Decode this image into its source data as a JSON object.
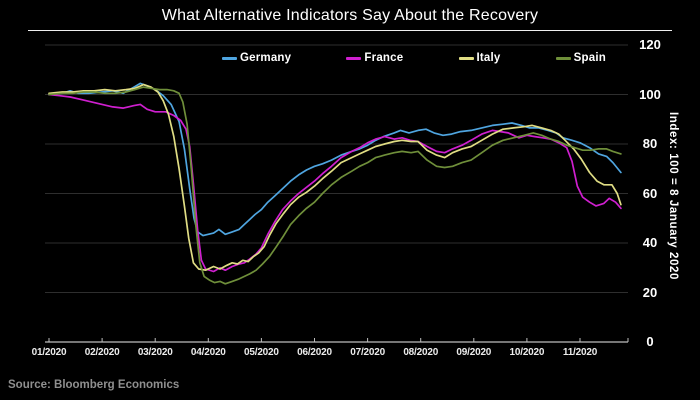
{
  "header": {
    "title": "What Alternative Indicators Say About the Recovery"
  },
  "footer": {
    "source": "Source: Bloomberg Economics"
  },
  "colors": {
    "background": "#000000",
    "title": "#ffffff",
    "grid": "#2e2e2e",
    "axis": "#bdbdbd",
    "germany": "#4fa5e0",
    "france": "#cf1fcf",
    "italy": "#e0dd84",
    "spain": "#6f8f3a"
  },
  "chart_data": {
    "type": "line",
    "title": "What Alternative Indicators Say About the Recovery",
    "y_axis_title": "Index: 100 = 8 January 2020",
    "x_unit": "months_from_01_2020",
    "x_tick_labels": [
      "01/2020",
      "02/2020",
      "03/2020",
      "04/2020",
      "05/2020",
      "06/2020",
      "07/2020",
      "08/2020",
      "09/2020",
      "10/2020",
      "11/2020"
    ],
    "y_ticks": [
      0,
      20,
      40,
      60,
      80,
      100,
      120
    ],
    "ylim": [
      0,
      120
    ],
    "xlim": [
      0,
      10.9
    ],
    "grid": "horizontal",
    "legend_position": "top",
    "series": [
      {
        "name": "Germany",
        "color": "#4fa5e0",
        "points": [
          [
            0,
            100
          ],
          [
            0.25,
            100.5
          ],
          [
            0.4,
            101.5
          ],
          [
            0.55,
            100.5
          ],
          [
            0.75,
            100.5
          ],
          [
            1.0,
            101
          ],
          [
            1.2,
            101.5
          ],
          [
            1.4,
            100.5
          ],
          [
            1.6,
            103
          ],
          [
            1.72,
            104.5
          ],
          [
            1.85,
            103.5
          ],
          [
            2.0,
            102
          ],
          [
            2.15,
            99.5
          ],
          [
            2.3,
            96
          ],
          [
            2.45,
            89
          ],
          [
            2.55,
            78
          ],
          [
            2.65,
            62
          ],
          [
            2.73,
            50
          ],
          [
            2.8,
            44.5
          ],
          [
            2.9,
            43
          ],
          [
            3.0,
            43.5
          ],
          [
            3.1,
            44
          ],
          [
            3.2,
            45.5
          ],
          [
            3.32,
            43.5
          ],
          [
            3.45,
            44.5
          ],
          [
            3.58,
            45.5
          ],
          [
            3.68,
            47.5
          ],
          [
            3.78,
            49.5
          ],
          [
            3.88,
            51.5
          ],
          [
            4.0,
            53.5
          ],
          [
            4.12,
            56.5
          ],
          [
            4.25,
            59
          ],
          [
            4.4,
            62
          ],
          [
            4.55,
            65
          ],
          [
            4.7,
            67.5
          ],
          [
            4.85,
            69.5
          ],
          [
            5.0,
            71
          ],
          [
            5.15,
            72
          ],
          [
            5.32,
            73.5
          ],
          [
            5.5,
            75.5
          ],
          [
            5.7,
            77
          ],
          [
            5.85,
            78
          ],
          [
            6.0,
            79.5
          ],
          [
            6.15,
            81.5
          ],
          [
            6.3,
            83
          ],
          [
            6.5,
            84.5
          ],
          [
            6.62,
            85.5
          ],
          [
            6.78,
            84.5
          ],
          [
            6.95,
            85.5
          ],
          [
            7.1,
            86
          ],
          [
            7.25,
            84.5
          ],
          [
            7.42,
            83.5
          ],
          [
            7.58,
            84
          ],
          [
            7.75,
            85
          ],
          [
            7.95,
            85.5
          ],
          [
            8.15,
            86.5
          ],
          [
            8.35,
            87.5
          ],
          [
            8.55,
            88
          ],
          [
            8.72,
            88.5
          ],
          [
            8.9,
            87.5
          ],
          [
            9.05,
            86.5
          ],
          [
            9.22,
            86.5
          ],
          [
            9.4,
            85.5
          ],
          [
            9.55,
            84.5
          ],
          [
            9.68,
            82.5
          ],
          [
            9.85,
            81.5
          ],
          [
            10.0,
            80.5
          ],
          [
            10.18,
            78.5
          ],
          [
            10.35,
            76
          ],
          [
            10.5,
            75
          ],
          [
            10.62,
            72.5
          ],
          [
            10.77,
            68.5
          ]
        ]
      },
      {
        "name": "France",
        "color": "#cf1fcf",
        "points": [
          [
            0,
            100
          ],
          [
            0.2,
            99.5
          ],
          [
            0.4,
            99
          ],
          [
            0.6,
            98
          ],
          [
            0.8,
            97
          ],
          [
            1.0,
            96
          ],
          [
            1.2,
            95
          ],
          [
            1.4,
            94.5
          ],
          [
            1.6,
            95.5
          ],
          [
            1.72,
            96
          ],
          [
            1.85,
            94
          ],
          [
            2.0,
            93
          ],
          [
            2.2,
            93
          ],
          [
            2.35,
            91.5
          ],
          [
            2.48,
            89.5
          ],
          [
            2.58,
            86
          ],
          [
            2.65,
            79
          ],
          [
            2.72,
            64
          ],
          [
            2.8,
            45
          ],
          [
            2.87,
            33
          ],
          [
            2.95,
            29.5
          ],
          [
            3.1,
            28.5
          ],
          [
            3.22,
            30
          ],
          [
            3.32,
            29
          ],
          [
            3.45,
            30.5
          ],
          [
            3.58,
            31.5
          ],
          [
            3.68,
            32
          ],
          [
            3.78,
            33.5
          ],
          [
            3.9,
            35.5
          ],
          [
            4.0,
            38
          ],
          [
            4.12,
            43.5
          ],
          [
            4.25,
            48.5
          ],
          [
            4.4,
            53.5
          ],
          [
            4.55,
            57
          ],
          [
            4.7,
            60
          ],
          [
            4.85,
            62.5
          ],
          [
            5.0,
            65
          ],
          [
            5.15,
            68
          ],
          [
            5.32,
            71
          ],
          [
            5.5,
            74.5
          ],
          [
            5.7,
            77
          ],
          [
            5.85,
            78.5
          ],
          [
            6.0,
            80.5
          ],
          [
            6.15,
            82
          ],
          [
            6.32,
            83
          ],
          [
            6.5,
            82
          ],
          [
            6.65,
            82.5
          ],
          [
            6.8,
            81.5
          ],
          [
            6.95,
            81
          ],
          [
            7.12,
            79
          ],
          [
            7.3,
            77
          ],
          [
            7.45,
            76.5
          ],
          [
            7.6,
            78
          ],
          [
            7.78,
            79.5
          ],
          [
            7.95,
            81.5
          ],
          [
            8.15,
            84
          ],
          [
            8.35,
            85.5
          ],
          [
            8.5,
            85
          ],
          [
            8.65,
            84.5
          ],
          [
            8.85,
            82.5
          ],
          [
            9.0,
            83.5
          ],
          [
            9.15,
            83
          ],
          [
            9.3,
            82.5
          ],
          [
            9.45,
            82
          ],
          [
            9.6,
            80.5
          ],
          [
            9.75,
            78.5
          ],
          [
            9.85,
            73
          ],
          [
            9.95,
            63
          ],
          [
            10.05,
            58.5
          ],
          [
            10.18,
            56.5
          ],
          [
            10.3,
            55
          ],
          [
            10.45,
            56
          ],
          [
            10.55,
            58
          ],
          [
            10.67,
            56.5
          ],
          [
            10.77,
            54
          ]
        ]
      },
      {
        "name": "Italy",
        "color": "#e0dd84",
        "points": [
          [
            0,
            100.5
          ],
          [
            0.25,
            101
          ],
          [
            0.45,
            101
          ],
          [
            0.65,
            101.5
          ],
          [
            0.85,
            101.5
          ],
          [
            1.05,
            102
          ],
          [
            1.25,
            101.5
          ],
          [
            1.45,
            102
          ],
          [
            1.62,
            102.5
          ],
          [
            1.78,
            104
          ],
          [
            1.92,
            103
          ],
          [
            2.05,
            101
          ],
          [
            2.15,
            97.5
          ],
          [
            2.25,
            92
          ],
          [
            2.35,
            83
          ],
          [
            2.45,
            70
          ],
          [
            2.55,
            55
          ],
          [
            2.63,
            42
          ],
          [
            2.72,
            32
          ],
          [
            2.82,
            29.5
          ],
          [
            2.95,
            29
          ],
          [
            3.1,
            30.5
          ],
          [
            3.22,
            29.5
          ],
          [
            3.35,
            31
          ],
          [
            3.45,
            32
          ],
          [
            3.55,
            31.5
          ],
          [
            3.65,
            33
          ],
          [
            3.75,
            32.5
          ],
          [
            3.85,
            34.5
          ],
          [
            3.95,
            36
          ],
          [
            4.05,
            38.5
          ],
          [
            4.15,
            43
          ],
          [
            4.28,
            48
          ],
          [
            4.42,
            52
          ],
          [
            4.55,
            55.5
          ],
          [
            4.7,
            58.5
          ],
          [
            4.85,
            60.5
          ],
          [
            5.0,
            63
          ],
          [
            5.15,
            66
          ],
          [
            5.32,
            69
          ],
          [
            5.5,
            72.5
          ],
          [
            5.7,
            74.5
          ],
          [
            5.85,
            76
          ],
          [
            6.0,
            77.5
          ],
          [
            6.15,
            79
          ],
          [
            6.32,
            80
          ],
          [
            6.5,
            81
          ],
          [
            6.65,
            81.5
          ],
          [
            6.82,
            81
          ],
          [
            6.95,
            81
          ],
          [
            7.12,
            77.5
          ],
          [
            7.3,
            75.5
          ],
          [
            7.45,
            74.5
          ],
          [
            7.6,
            76.5
          ],
          [
            7.78,
            78
          ],
          [
            7.95,
            79
          ],
          [
            8.15,
            81.5
          ],
          [
            8.35,
            84
          ],
          [
            8.55,
            86
          ],
          [
            8.75,
            86.5
          ],
          [
            8.95,
            87
          ],
          [
            9.1,
            87.5
          ],
          [
            9.28,
            86.5
          ],
          [
            9.45,
            85.5
          ],
          [
            9.6,
            84
          ],
          [
            9.72,
            81.5
          ],
          [
            9.88,
            78
          ],
          [
            10.02,
            74
          ],
          [
            10.18,
            68.5
          ],
          [
            10.32,
            65
          ],
          [
            10.45,
            63.5
          ],
          [
            10.6,
            63.5
          ],
          [
            10.7,
            60
          ],
          [
            10.77,
            55.5
          ]
        ]
      },
      {
        "name": "Spain",
        "color": "#6f8f3a",
        "points": [
          [
            0,
            100
          ],
          [
            0.25,
            100.5
          ],
          [
            0.45,
            100.5
          ],
          [
            0.65,
            101
          ],
          [
            0.85,
            101
          ],
          [
            1.05,
            100.5
          ],
          [
            1.25,
            100.5
          ],
          [
            1.45,
            101
          ],
          [
            1.62,
            102
          ],
          [
            1.78,
            103
          ],
          [
            1.92,
            102.5
          ],
          [
            2.08,
            102
          ],
          [
            2.22,
            102
          ],
          [
            2.35,
            101.5
          ],
          [
            2.45,
            100.5
          ],
          [
            2.52,
            97
          ],
          [
            2.6,
            88
          ],
          [
            2.68,
            70
          ],
          [
            2.76,
            48
          ],
          [
            2.84,
            32
          ],
          [
            2.92,
            26.5
          ],
          [
            3.02,
            25
          ],
          [
            3.12,
            24
          ],
          [
            3.22,
            24.5
          ],
          [
            3.32,
            23.5
          ],
          [
            3.45,
            24.5
          ],
          [
            3.58,
            25.5
          ],
          [
            3.68,
            26.5
          ],
          [
            3.78,
            27.5
          ],
          [
            3.9,
            29
          ],
          [
            4.02,
            31.5
          ],
          [
            4.15,
            34.5
          ],
          [
            4.28,
            38.5
          ],
          [
            4.42,
            43
          ],
          [
            4.55,
            47.5
          ],
          [
            4.7,
            51
          ],
          [
            4.85,
            54
          ],
          [
            5.0,
            56.5
          ],
          [
            5.15,
            60
          ],
          [
            5.32,
            63.5
          ],
          [
            5.5,
            66.5
          ],
          [
            5.7,
            69
          ],
          [
            5.85,
            71
          ],
          [
            6.0,
            72.5
          ],
          [
            6.15,
            74.5
          ],
          [
            6.32,
            75.5
          ],
          [
            6.5,
            76.5
          ],
          [
            6.65,
            77
          ],
          [
            6.82,
            76.5
          ],
          [
            6.95,
            77
          ],
          [
            7.12,
            73.5
          ],
          [
            7.3,
            71
          ],
          [
            7.45,
            70.5
          ],
          [
            7.6,
            71
          ],
          [
            7.78,
            72.5
          ],
          [
            7.95,
            73.5
          ],
          [
            8.15,
            76.5
          ],
          [
            8.35,
            79.5
          ],
          [
            8.55,
            81.5
          ],
          [
            8.75,
            82.5
          ],
          [
            8.95,
            83.5
          ],
          [
            9.12,
            84.5
          ],
          [
            9.28,
            83.5
          ],
          [
            9.45,
            82
          ],
          [
            9.6,
            81
          ],
          [
            9.75,
            79.5
          ],
          [
            9.9,
            78.5
          ],
          [
            10.05,
            77.5
          ],
          [
            10.2,
            77.5
          ],
          [
            10.35,
            78
          ],
          [
            10.5,
            78
          ],
          [
            10.62,
            77
          ],
          [
            10.77,
            76
          ]
        ]
      }
    ]
  }
}
